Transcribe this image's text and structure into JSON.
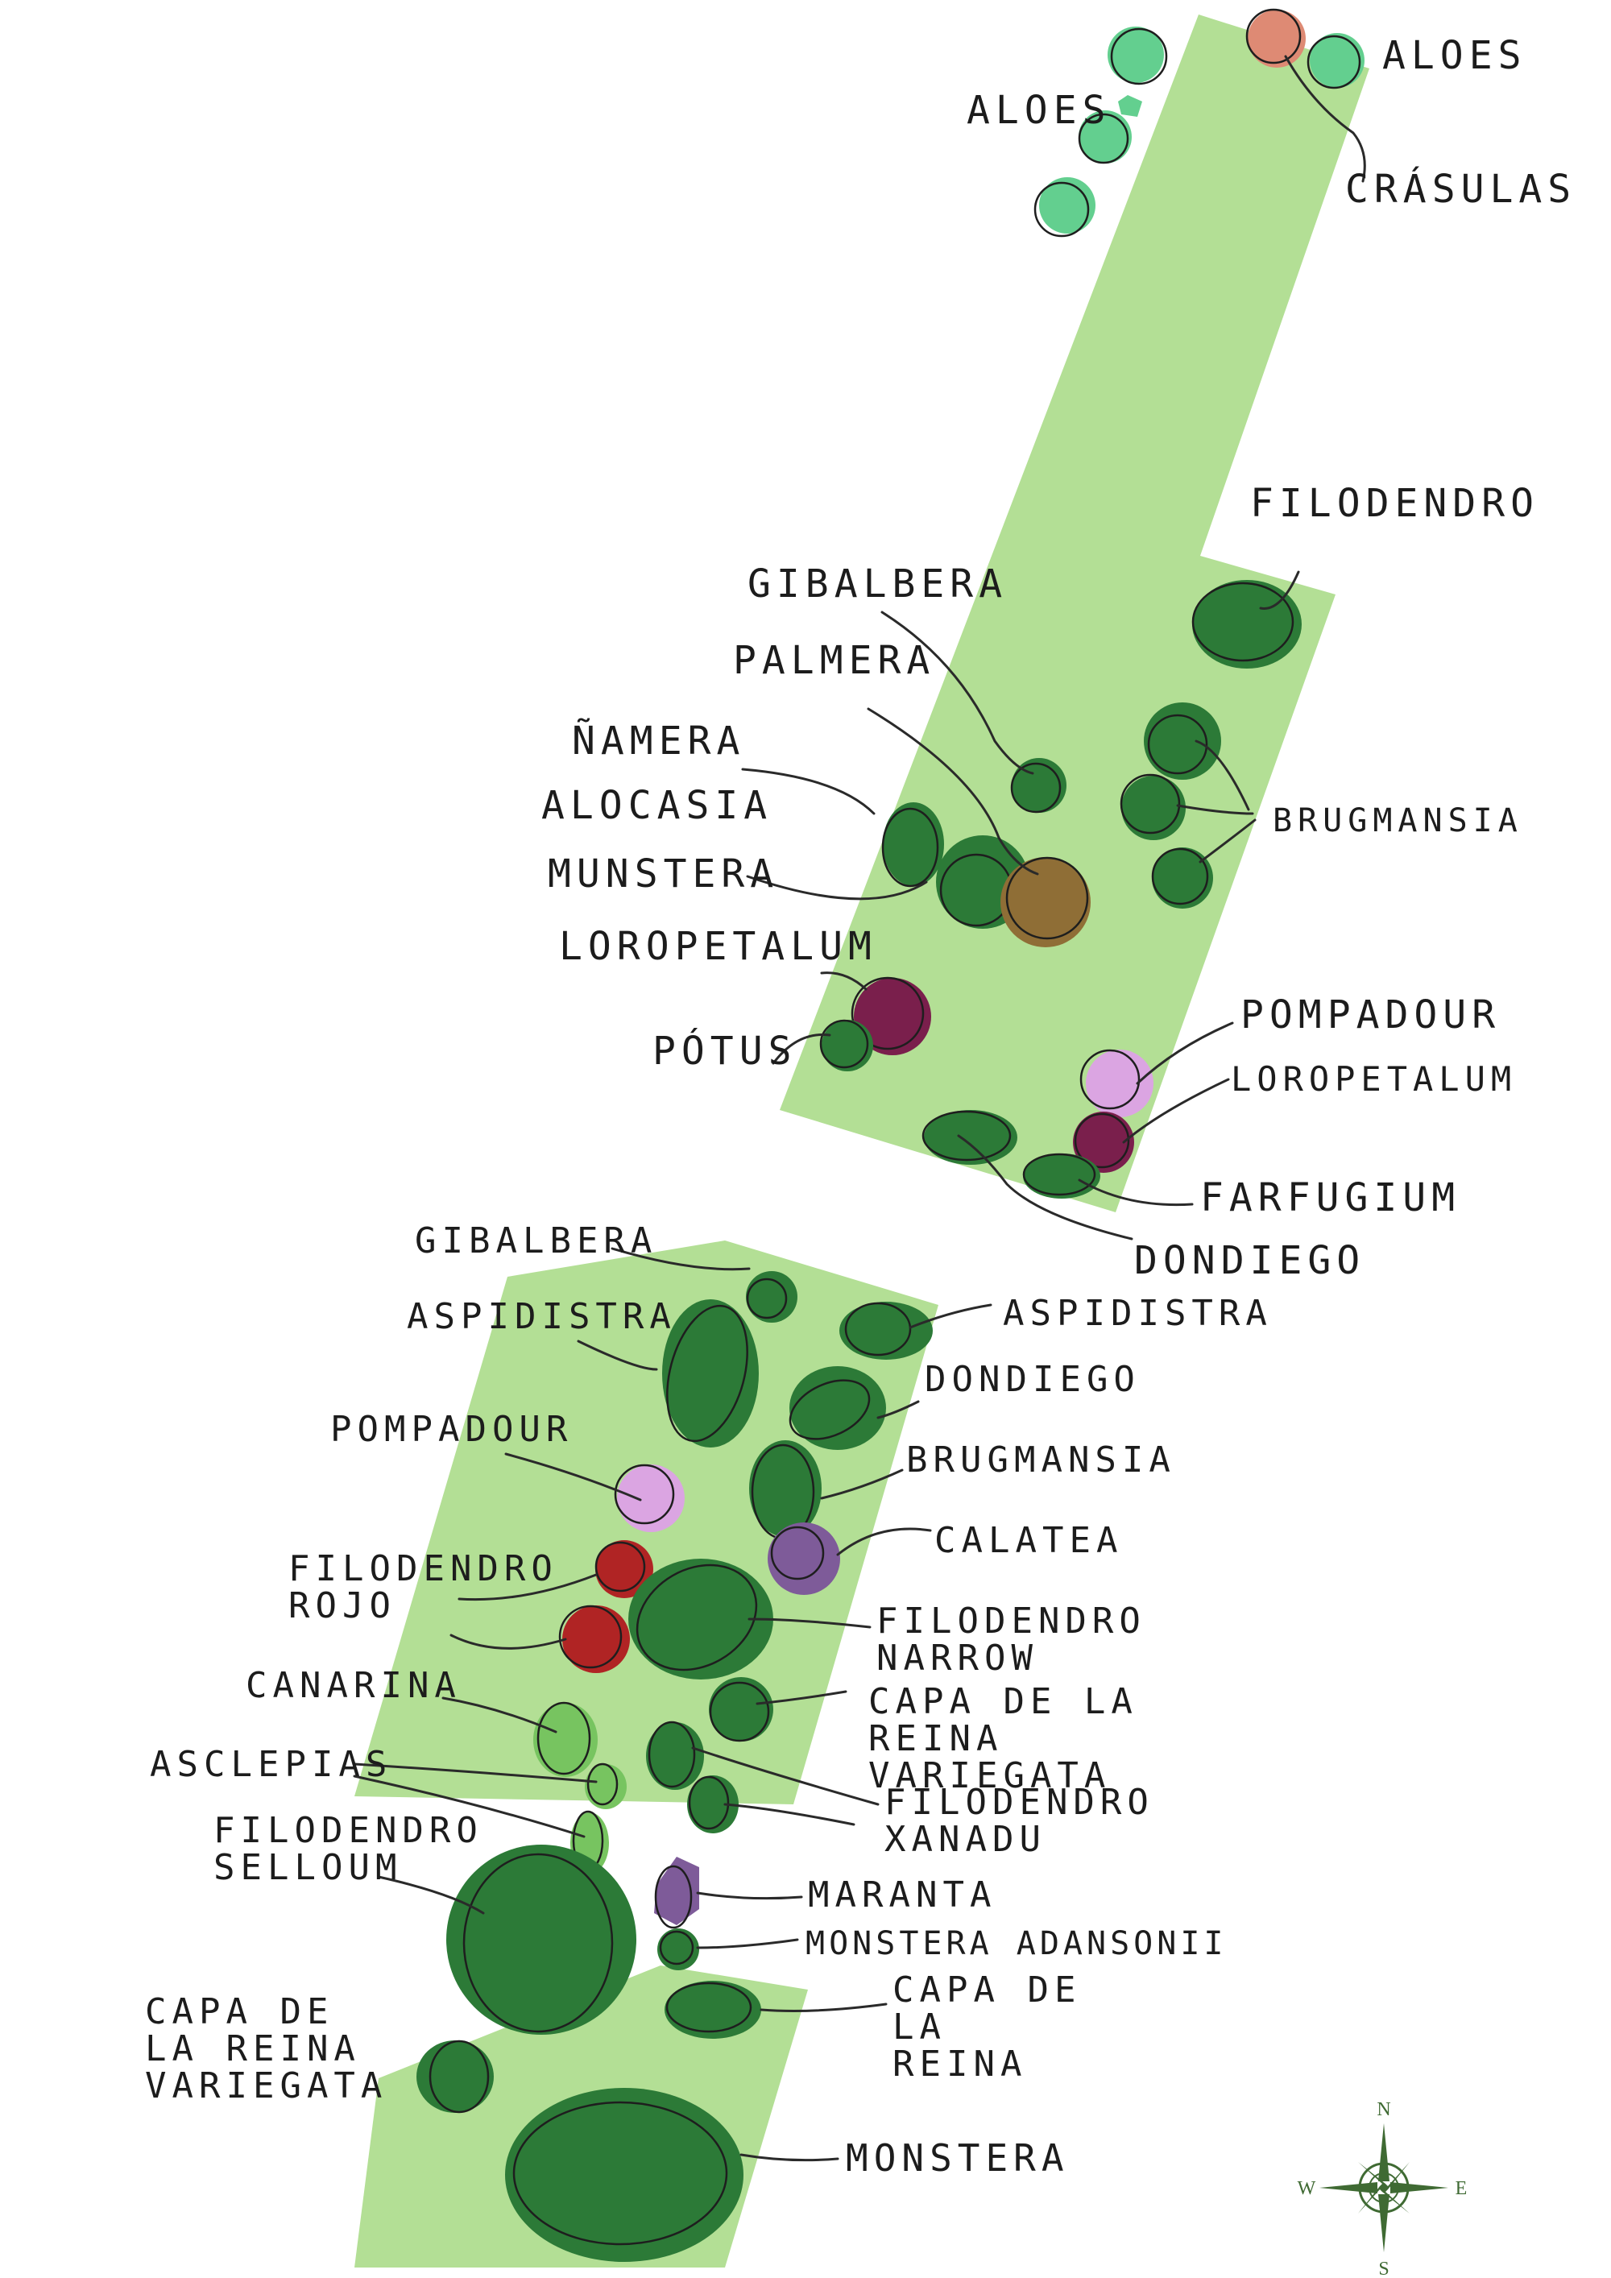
{
  "colors": {
    "bed": "#b3df95",
    "plant_dark": "#2c7a37",
    "plant_light": "#77c460",
    "succulent": "#63cf8f",
    "crassula": "#de8a74",
    "brown": "#8f6e36",
    "burgundy": "#7a1f4c",
    "pink": "#dba5e2",
    "red": "#b02424",
    "purple": "#7e5b99",
    "compass": "#3f6a33"
  },
  "labels": {
    "aloes_top": "ALOES",
    "aloes_left": "ALOES",
    "crasulas": "CRÁSULAS",
    "filodendro_top": "FILODENDRO",
    "gibalbera_top": "GIBALBERA",
    "palmera": "PALMERA",
    "namera": "ÑAMERA",
    "alocasia": "ALOCASIA",
    "monstera_top": "MUNSTERA",
    "loropetalum_left": "LOROPETALUM",
    "potus": "PÓTUS",
    "brugmansia_top": "BRUGMANSIA",
    "pompadour_top": "POMPADOUR",
    "loropetalum_right": "LOROPETALUM",
    "farfugium": "FARFUGIUM",
    "dondiego_top": "DONDIEGO",
    "gibalbera_bottom": "GIBALBERA",
    "aspidistra_left": "ASPIDISTRA",
    "aspidistra_right": "ASPIDISTRA",
    "dondiego_bottom": "DONDIEGO",
    "pompadour_bottom": "POMPADOUR",
    "brugmansia_bottom": "BRUGMANSIA",
    "calatea": "CALATEA",
    "filodendro_rojo": "FILODENDRO ROJO",
    "filodendro_narrow": "FILODENDRO NARROW",
    "canarina": "CANARINA",
    "capa_reina_variegata_right": "CAPA DE LA REINA VARIEGATA",
    "asclepias": "ASCLEPIAS",
    "filodendro_xanadu": "FILODENDRO XANADU",
    "filodendro_selloum": "FILODENDRO SELLOUM",
    "maranta": "MARANTA",
    "monstera_adansonii": "MONSTERA ADANSONII",
    "capa_reina": "CAPA DE LA REINA",
    "capa_reina_variegata_left": "CAPA DE LA REINA VARIEGATA",
    "monstera_bottom": "MONSTERA"
  },
  "compass": {
    "n": "N",
    "s": "S",
    "e": "E",
    "w": "W"
  }
}
